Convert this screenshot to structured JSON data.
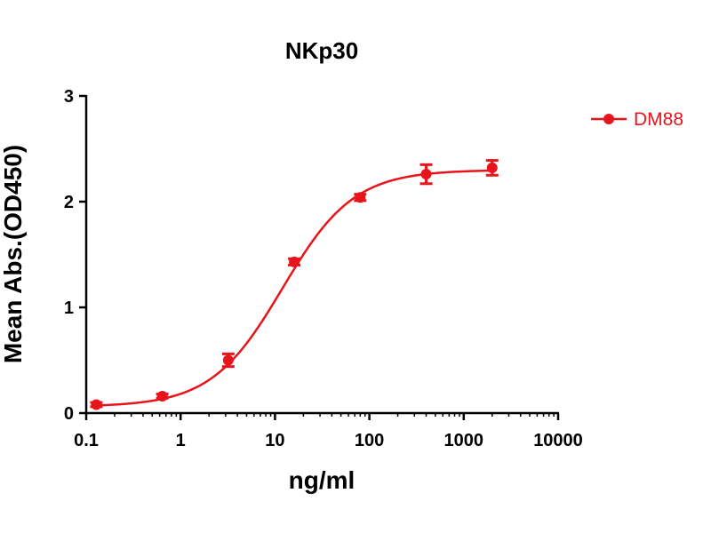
{
  "chart_data": {
    "type": "scatter",
    "title": "NKp30",
    "xlabel": "ng/ml",
    "ylabel": "Mean Abs.(OD450)",
    "x_scale": "log10",
    "xlim": [
      0.1,
      10000
    ],
    "ylim": [
      0,
      3
    ],
    "x_ticks": [
      {
        "value": 0.1,
        "label": "0.1"
      },
      {
        "value": 1,
        "label": "1"
      },
      {
        "value": 10,
        "label": "10"
      },
      {
        "value": 100,
        "label": "100"
      },
      {
        "value": 1000,
        "label": "1000"
      },
      {
        "value": 10000,
        "label": "10000"
      }
    ],
    "y_ticks": [
      {
        "value": 0,
        "label": "0"
      },
      {
        "value": 1,
        "label": "1"
      },
      {
        "value": 2,
        "label": "2"
      },
      {
        "value": 3,
        "label": "3"
      }
    ],
    "legend_position": "top-right",
    "series": [
      {
        "name": "DM88",
        "color": "#e8141c",
        "x": [
          0.128,
          0.64,
          3.2,
          16,
          80,
          400,
          2000
        ],
        "y": [
          0.08,
          0.16,
          0.5,
          1.43,
          2.04,
          2.26,
          2.32
        ],
        "error": [
          0.02,
          0.02,
          0.06,
          0.03,
          0.03,
          0.09,
          0.07
        ],
        "fit": {
          "model": "4PL",
          "bottom": 0.06,
          "top": 2.3,
          "ec50": 12,
          "hill": 1.15,
          "x_range": [
            0.128,
            2000
          ]
        }
      }
    ]
  }
}
